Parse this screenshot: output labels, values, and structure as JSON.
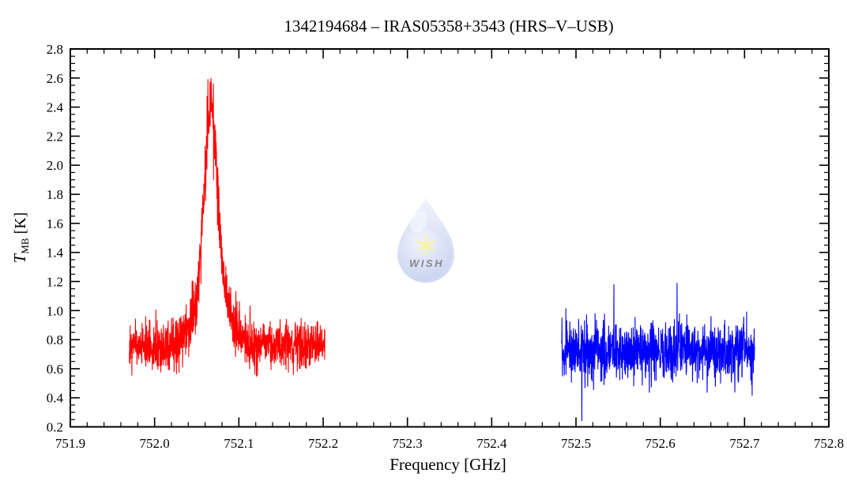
{
  "header": {
    "title": "1342194684 – IRAS05358+3543 (HRS–V–USB)"
  },
  "chart_data": {
    "type": "line",
    "title": "1342194684 – IRAS05358+3543 (HRS–V–USB)",
    "xlabel": "Frequency [GHz]",
    "ylabel": "T_MB [K]",
    "ylabel_parts": {
      "symbol": "T",
      "subscript": "MB",
      "unit": " [K]"
    },
    "xlim": [
      751.9,
      752.8
    ],
    "ylim": [
      0.2,
      2.8
    ],
    "x_ticks": [
      751.9,
      752.0,
      752.1,
      752.2,
      752.3,
      752.4,
      752.5,
      752.6,
      752.7,
      752.8
    ],
    "y_ticks": [
      0.2,
      0.4,
      0.6,
      0.8,
      1.0,
      1.2,
      1.4,
      1.6,
      1.8,
      2.0,
      2.2,
      2.4,
      2.6,
      2.8
    ],
    "x_minor_step": 0.02,
    "y_minor_step": 0.05,
    "grid": false,
    "legend": "none",
    "background_color": "#ffffff",
    "axis_color": "#000000",
    "series": [
      {
        "name": "spectrum-red",
        "color": "#ff0000",
        "x_start": 751.97,
        "x_end": 752.202,
        "n_points": 1150,
        "baseline": 0.755,
        "noise_sigma": 0.082,
        "noise_signal_scale": 0.3,
        "seed": 20,
        "peaks": [
          {
            "center": 752.067,
            "amplitude": 1.22,
            "sigma": 0.0075
          },
          {
            "center": 752.067,
            "amplitude": 0.42,
            "sigma": 0.018
          }
        ],
        "spikes": [
          {
            "x": 752.067,
            "y": 2.6
          }
        ],
        "y_clip": [
          0.33,
          2.6
        ],
        "peak_value_K": 2.6,
        "line_center_GHz": 752.067
      },
      {
        "name": "spectrum-blue",
        "color": "#0000ff",
        "x_start": 752.483,
        "x_end": 752.712,
        "n_points": 1150,
        "baseline": 0.72,
        "noise_sigma": 0.098,
        "noise_signal_scale": 0,
        "seed": 99,
        "peaks": [],
        "spikes": [
          {
            "x": 752.507,
            "y": 0.24
          },
          {
            "x": 752.545,
            "y": 1.18
          },
          {
            "x": 752.62,
            "y": 1.19
          }
        ],
        "y_clip": [
          0.21,
          2.8
        ],
        "peak_value_K": null,
        "line_center_GHz": null
      }
    ],
    "watermark": {
      "label": "WISH",
      "star_glyph": "✳",
      "drop_top_color": "#dfe6f7",
      "drop_mid_color": "#b3c1ee",
      "drop_bottom_color": "#9fb0e6",
      "star_color": "#f2e838",
      "text_color": "#e8df3a"
    }
  }
}
